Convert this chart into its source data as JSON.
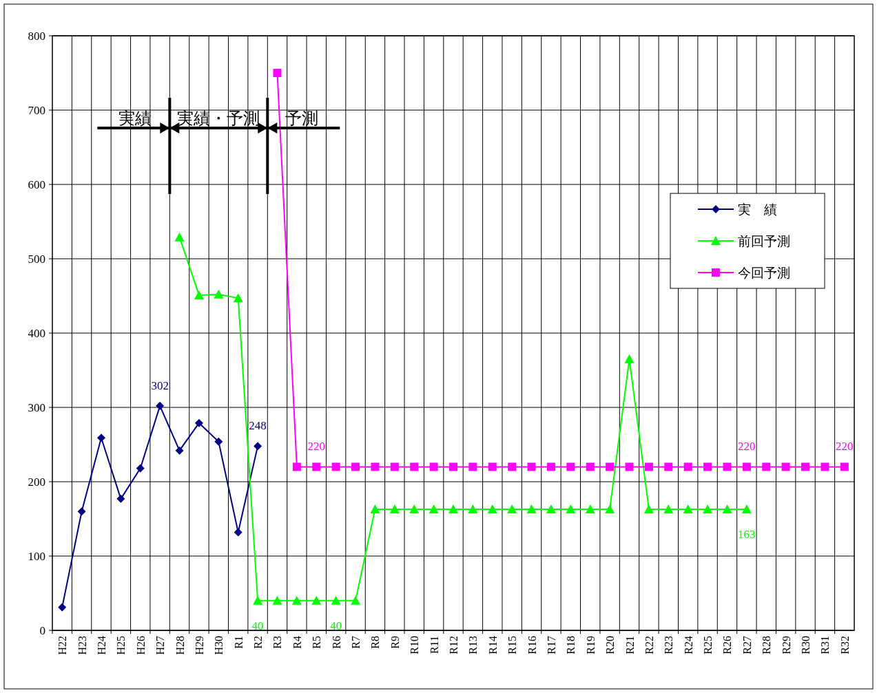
{
  "chart_data": {
    "type": "line",
    "categories": [
      "H22",
      "H23",
      "H24",
      "H25",
      "H26",
      "H27",
      "H28",
      "H29",
      "H30",
      "R1",
      "R2",
      "R3",
      "R4",
      "R5",
      "R6",
      "R7",
      "R8",
      "R9",
      "R10",
      "R11",
      "R12",
      "R13",
      "R14",
      "R15",
      "R16",
      "R17",
      "R18",
      "R19",
      "R20",
      "R21",
      "R22",
      "R23",
      "R24",
      "R25",
      "R26",
      "R27",
      "R28",
      "R29",
      "R30",
      "R31",
      "R32"
    ],
    "series": [
      {
        "name": "実　績",
        "color": "#000080",
        "marker": "diamond",
        "values": [
          31,
          160,
          259,
          177,
          218,
          302,
          242,
          279,
          254,
          132,
          248,
          null,
          null,
          null,
          null,
          null,
          null,
          null,
          null,
          null,
          null,
          null,
          null,
          null,
          null,
          null,
          null,
          null,
          null,
          null,
          null,
          null,
          null,
          null,
          null,
          null,
          null,
          null,
          null,
          null,
          null
        ],
        "value_labels": [
          null,
          null,
          null,
          null,
          null,
          "302",
          null,
          null,
          null,
          null,
          "248",
          null,
          null,
          null,
          null,
          null,
          null,
          null,
          null,
          null,
          null,
          null,
          null,
          null,
          null,
          null,
          null,
          null,
          null,
          null,
          null,
          null,
          null,
          null,
          null,
          null,
          null,
          null,
          null,
          null,
          null
        ]
      },
      {
        "name": "前回予測",
        "color": "#00ff00",
        "marker": "triangle",
        "values": [
          null,
          null,
          null,
          null,
          null,
          null,
          529,
          451,
          452,
          447,
          40,
          40,
          40,
          40,
          40,
          40,
          163,
          163,
          163,
          163,
          163,
          163,
          163,
          163,
          163,
          163,
          163,
          163,
          163,
          365,
          163,
          163,
          163,
          163,
          163,
          163,
          null,
          null,
          null,
          null,
          null
        ],
        "value_labels": [
          null,
          null,
          null,
          null,
          null,
          null,
          null,
          null,
          null,
          null,
          "40",
          null,
          null,
          null,
          "40",
          null,
          null,
          null,
          null,
          null,
          null,
          null,
          null,
          null,
          null,
          null,
          null,
          null,
          null,
          null,
          null,
          null,
          null,
          null,
          null,
          "163",
          null,
          null,
          null,
          null,
          null
        ]
      },
      {
        "name": "今回予測",
        "color": "#ff00ff",
        "marker": "square",
        "values": [
          null,
          null,
          null,
          null,
          null,
          null,
          null,
          null,
          null,
          null,
          null,
          750,
          220,
          220,
          220,
          220,
          220,
          220,
          220,
          220,
          220,
          220,
          220,
          220,
          220,
          220,
          220,
          220,
          220,
          220,
          220,
          220,
          220,
          220,
          220,
          220,
          220,
          220,
          220,
          220,
          220
        ],
        "value_labels": [
          null,
          null,
          null,
          null,
          null,
          null,
          null,
          null,
          null,
          null,
          null,
          null,
          null,
          "220",
          null,
          null,
          null,
          null,
          null,
          null,
          null,
          null,
          null,
          null,
          null,
          null,
          null,
          null,
          null,
          null,
          null,
          null,
          null,
          null,
          null,
          "220",
          null,
          null,
          null,
          null,
          "220"
        ]
      }
    ],
    "ylim": [
      0,
      800
    ],
    "yticks": [
      0,
      100,
      200,
      300,
      400,
      500,
      600,
      700,
      800
    ],
    "grid": true,
    "legend": "top right",
    "line_style": "solid",
    "annotations": [
      "実績",
      "実績・予測",
      "予測"
    ]
  }
}
